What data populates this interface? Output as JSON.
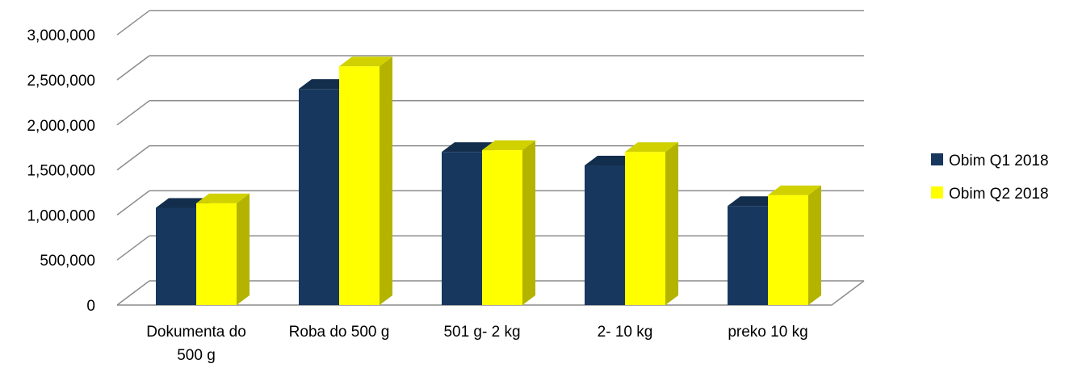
{
  "chart_data": {
    "type": "bar",
    "categories": [
      [
        "Dokumenta do",
        "500 g"
      ],
      [
        "Roba do 500 g"
      ],
      [
        "501 g- 2 kg"
      ],
      [
        "2- 10 kg"
      ],
      [
        "preko 10 kg"
      ]
    ],
    "series": [
      {
        "name": "Obim Q1  2018",
        "color": "#17375E",
        "values": [
          1080000,
          2400000,
          1700000,
          1550000,
          1100000
        ]
      },
      {
        "name": "Obim Q2  2018",
        "color": "#FFFF00",
        "values": [
          1130000,
          2650000,
          1720000,
          1700000,
          1220000
        ]
      }
    ],
    "yticks": [
      "0",
      "500,000",
      "1,000,000",
      "1,500,000",
      "2,000,000",
      "2,500,000",
      "3,000,000"
    ],
    "ylim": [
      0,
      3000000
    ],
    "grid": true,
    "legend": "right",
    "title": "",
    "xlabel": "",
    "ylabel": ""
  }
}
